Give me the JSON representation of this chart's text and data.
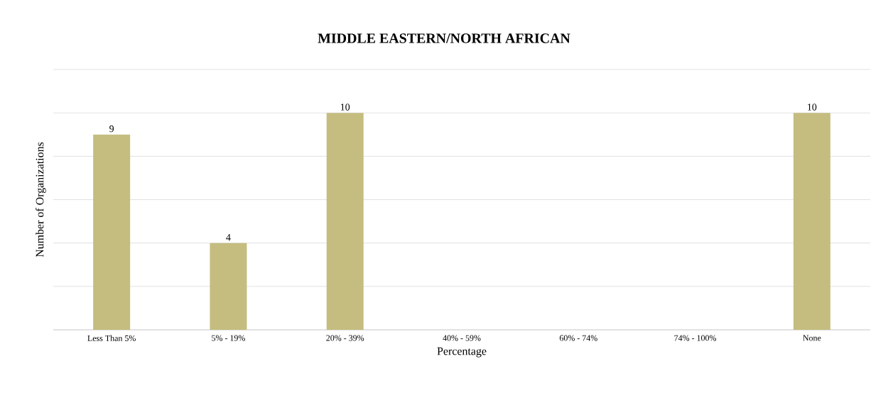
{
  "chart_data": {
    "type": "bar",
    "title": "MIDDLE EASTERN/NORTH AFRICAN",
    "xlabel": "Percentage",
    "ylabel": "Number of Organizations",
    "categories": [
      "Less Than 5%",
      "5% - 19%",
      "20% - 39%",
      "40% - 59%",
      "60% - 74%",
      "74% - 100%",
      "None"
    ],
    "values": [
      9,
      4,
      10,
      null,
      null,
      null,
      10
    ],
    "value_labels": [
      "9",
      "4",
      "10",
      null,
      null,
      null,
      "10"
    ],
    "color": "#c4bd7f",
    "ylim": [
      0,
      12
    ],
    "yticks": [
      {
        "value": 0,
        "label": null
      },
      {
        "value": 2,
        "label": null
      },
      {
        "value": 4,
        "label": null
      },
      {
        "value": 6,
        "label": null
      },
      {
        "value": 8,
        "label": null
      },
      {
        "value": 10,
        "label": null
      },
      {
        "value": 12,
        "label": null
      }
    ],
    "tick_labels": "x",
    "grid": "y"
  }
}
